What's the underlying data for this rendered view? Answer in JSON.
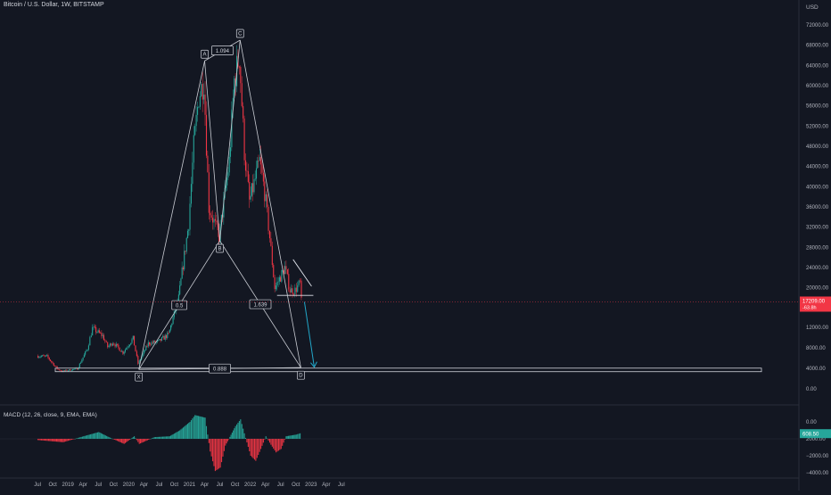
{
  "header": {
    "symbol_title": "Bitcoin / U.S. Dollar, 1W, BITSTAMP",
    "currency": "USD"
  },
  "macd": {
    "title": "MACD (12, 26, close, 9, EMA, EMA)",
    "last_value_label": "608.50",
    "y_ticks": [
      "2000.00",
      "0.00",
      "−2000.00",
      "−4000.00"
    ]
  },
  "chart_data": {
    "type": "candlestick",
    "title": "Bitcoin / U.S. Dollar, 1W, BITSTAMP",
    "ylabel": "USD",
    "ylim": [
      0,
      72000
    ],
    "grid": false,
    "x_tick_labels": [
      "Jul",
      "Oct",
      "2019",
      "Apr",
      "Jul",
      "Oct",
      "2020",
      "Apr",
      "Jul",
      "Oct",
      "2021",
      "Apr",
      "Jul",
      "Oct",
      "2022",
      "Apr",
      "Jul",
      "Oct",
      "2023",
      "Apr",
      "Jul"
    ],
    "y_tick_labels": [
      "72000.00",
      "68000.00",
      "64000.00",
      "60000.00",
      "56000.00",
      "52000.00",
      "48000.00",
      "44000.00",
      "40000.00",
      "36000.00",
      "32000.00",
      "28000.00",
      "24000.00",
      "20000.00",
      "12000.00",
      "8000.00",
      "4000.00",
      "0.00"
    ],
    "current_price": {
      "value": "17209.00",
      "change": "-63.8h",
      "color": "#f23645"
    },
    "colors": {
      "up": "#26a69a",
      "down": "#f23645",
      "pattern": "#c9ccd3",
      "projection": "#22a7c9"
    },
    "close_anchors": [
      {
        "t": "Jul 2018",
        "price": 6500
      },
      {
        "t": "Sep 2018",
        "price": 6400
      },
      {
        "t": "Nov 2018",
        "price": 4000
      },
      {
        "t": "Dec 2018",
        "price": 3500
      },
      {
        "t": "Mar 2019",
        "price": 4000
      },
      {
        "t": "May 2019",
        "price": 8000
      },
      {
        "t": "Jun 2019",
        "price": 12000
      },
      {
        "t": "Aug 2019",
        "price": 10500
      },
      {
        "t": "Sep 2019",
        "price": 8300
      },
      {
        "t": "Oct 2019",
        "price": 9200
      },
      {
        "t": "Dec 2019",
        "price": 7200
      },
      {
        "t": "Feb 2020",
        "price": 10000
      },
      {
        "t": "Mar 2020",
        "price": 5000
      },
      {
        "t": "May 2020",
        "price": 9000
      },
      {
        "t": "Jul 2020",
        "price": 9300
      },
      {
        "t": "Sep 2020",
        "price": 10800
      },
      {
        "t": "Nov 2020",
        "price": 18000
      },
      {
        "t": "Jan 2021",
        "price": 33000
      },
      {
        "t": "Feb 2021",
        "price": 48000
      },
      {
        "t": "Mar 2021",
        "price": 58000
      },
      {
        "t": "Apr 2021",
        "price": 61000
      },
      {
        "t": "May 2021",
        "price": 36000
      },
      {
        "t": "Jun 2021",
        "price": 33000
      },
      {
        "t": "Jul 2021",
        "price": 30000
      },
      {
        "t": "Sep 2021",
        "price": 45000
      },
      {
        "t": "Oct 2021",
        "price": 61000
      },
      {
        "t": "Nov 2021",
        "price": 66000
      },
      {
        "t": "Dec 2021",
        "price": 47000
      },
      {
        "t": "Jan 2022",
        "price": 37000
      },
      {
        "t": "Mar 2022",
        "price": 45000
      },
      {
        "t": "Apr 2022",
        "price": 39000
      },
      {
        "t": "May 2022",
        "price": 30000
      },
      {
        "t": "Jun 2022",
        "price": 20000
      },
      {
        "t": "Aug 2022",
        "price": 24000
      },
      {
        "t": "Sep 2022",
        "price": 19500
      },
      {
        "t": "Oct 2022",
        "price": 19500
      },
      {
        "t": "Nov 2022",
        "price": 21000
      },
      {
        "t": "Nov 2022",
        "price": 17209
      }
    ],
    "harmonic_pattern": {
      "points": [
        {
          "label": "X",
          "t": "Mar 2020",
          "price": 3850
        },
        {
          "label": "A",
          "t": "Apr 2021",
          "price": 64900
        },
        {
          "label": "B",
          "t": "Jul 2021",
          "price": 29300
        },
        {
          "label": "C",
          "t": "Nov 2021",
          "price": 69000
        },
        {
          "label": "D",
          "t": "Nov 2022",
          "price": 4200
        }
      ],
      "ratios": [
        {
          "label": "1.094",
          "between": "A-C"
        },
        {
          "label": "0.5",
          "between": "X-B"
        },
        {
          "label": "1.639",
          "between": "B-D"
        },
        {
          "label": "0.888",
          "between": "X-D"
        }
      ]
    },
    "support_zone": {
      "from_price": 3400,
      "to_price": 4100
    },
    "triangle": {
      "top_from": 25600,
      "top_to": 20300,
      "bottom": 18500,
      "from": "Jul 2022",
      "to": "Nov 2022"
    },
    "projection_arrow": {
      "from_price": 17209,
      "to_price": 4300
    }
  }
}
